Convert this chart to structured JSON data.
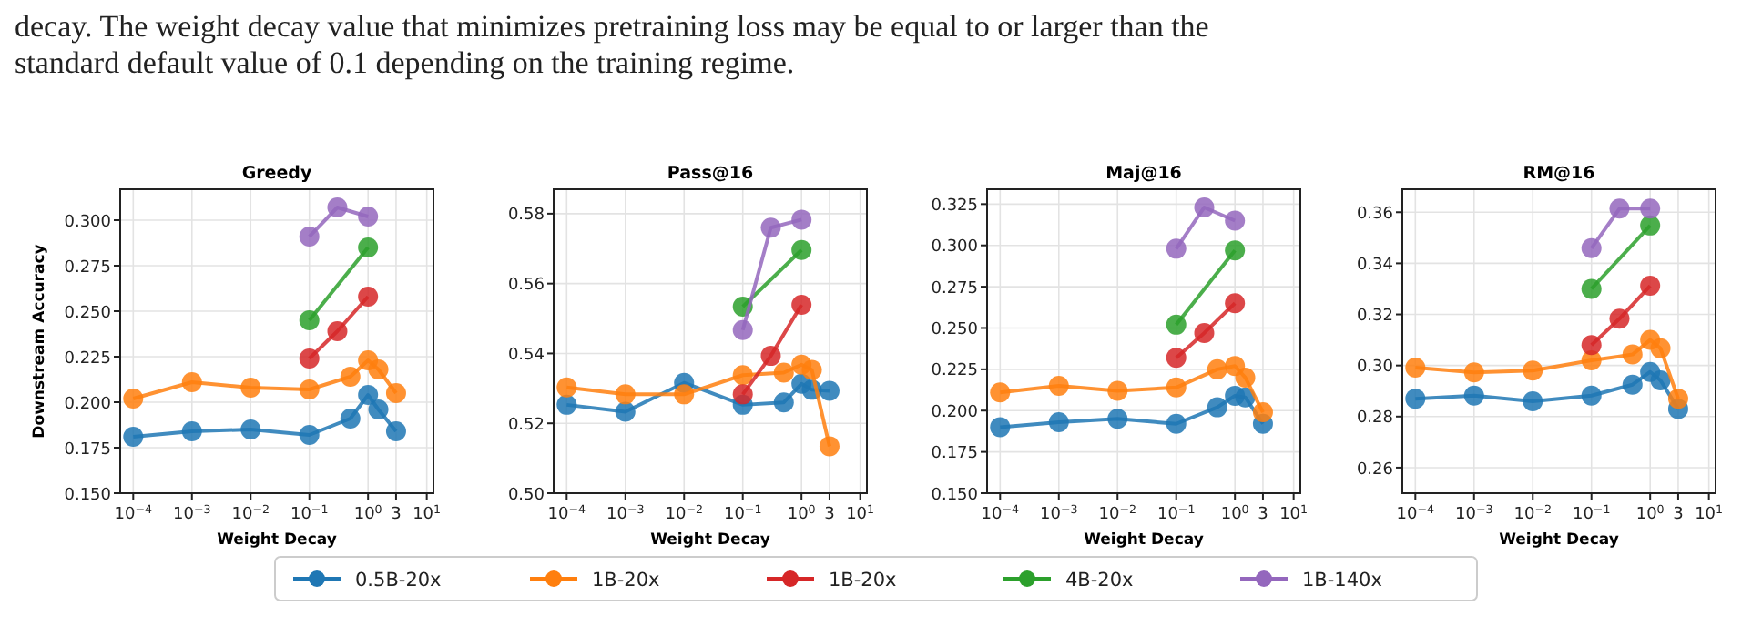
{
  "chart_data": [
    {
      "type": "line",
      "title": "Greedy",
      "xlabel": "Weight Decay",
      "ylabel": "Downstream Accuracy",
      "log": "x",
      "grid": true,
      "marker": "circle",
      "legend": "bottom",
      "annotations": [
        "decay. The weight decay value that minimizes pretraining loss may be equal to or larger than the",
        "standard default value of 0.1 depending on the training regime."
      ],
      "xlim": [
        6e-05,
        13
      ],
      "xticks": [
        {
          "value": 0.0001,
          "label": "10$^{−4}$"
        },
        {
          "value": 0.001,
          "label": "10$^{−3}$"
        },
        {
          "value": 0.01,
          "label": "10$^{−2}$"
        },
        {
          "value": 0.1,
          "label": "10$^{−1}$"
        },
        {
          "value": 1,
          "label": "10$^{0}$"
        },
        {
          "value": 3,
          "label": "3"
        },
        {
          "value": 10,
          "label": "10$^{1}$"
        }
      ],
      "ylim": [
        0.15,
        0.317
      ],
      "yticks": [
        {
          "value": 0.15,
          "label": "0.150"
        },
        {
          "value": 0.175,
          "label": "0.175"
        },
        {
          "value": 0.2,
          "label": "0.200"
        },
        {
          "value": 0.225,
          "label": "0.225"
        },
        {
          "value": 0.25,
          "label": "0.250"
        },
        {
          "value": 0.275,
          "label": "0.275"
        },
        {
          "value": 0.3,
          "label": "0.300"
        }
      ],
      "series": [
        {
          "name": "0.5B-20x",
          "color": "#1f77b4",
          "x": [
            0.0001,
            0.001,
            0.01,
            0.1,
            0.5,
            1,
            1.5,
            3
          ],
          "values": [
            0.181,
            0.184,
            0.185,
            0.182,
            0.191,
            0.204,
            0.196,
            0.184
          ]
        },
        {
          "name": "1B-20x",
          "color": "#ff7f0e",
          "x": [
            0.0001,
            0.001,
            0.01,
            0.1,
            0.5,
            1,
            1.5,
            3
          ],
          "values": [
            0.202,
            0.211,
            0.208,
            0.207,
            0.214,
            0.223,
            0.218,
            0.205
          ]
        },
        {
          "name": "1B-20x",
          "color": "#d62728",
          "x": [
            0.1,
            0.3,
            1
          ],
          "values": [
            0.224,
            0.239,
            0.258
          ]
        },
        {
          "name": "4B-20x",
          "color": "#2ca02c",
          "x": [
            0.1,
            1
          ],
          "values": [
            0.245,
            0.285
          ]
        },
        {
          "name": "1B-140x",
          "color": "#9467bd",
          "x": [
            0.1,
            0.3,
            1
          ],
          "values": [
            0.291,
            0.307,
            0.302
          ]
        }
      ]
    },
    {
      "type": "line",
      "title": "Pass@16",
      "xlabel": "Weight Decay",
      "log": "x",
      "grid": true,
      "marker": "circle",
      "xlim": [
        6e-05,
        13
      ],
      "xticks": [
        {
          "value": 0.0001,
          "label": "10$^{−4}$"
        },
        {
          "value": 0.001,
          "label": "10$^{−3}$"
        },
        {
          "value": 0.01,
          "label": "10$^{−2}$"
        },
        {
          "value": 0.1,
          "label": "10$^{−1}$"
        },
        {
          "value": 1,
          "label": "10$^{0}$"
        },
        {
          "value": 3,
          "label": "3"
        },
        {
          "value": 10,
          "label": "10$^{1}$"
        }
      ],
      "ylim": [
        0.5,
        0.587
      ],
      "yticks": [
        {
          "value": 0.5,
          "label": "0.50"
        },
        0.52,
        0.54,
        0.56,
        0.58
      ],
      "series": [
        {
          "color": "#1f77b4",
          "x": [
            0.0001,
            0.001,
            0.01,
            0.1,
            0.5,
            1,
            1.5,
            3
          ],
          "values": [
            0.5253,
            0.5233,
            0.5316,
            0.5253,
            0.526,
            0.5313,
            0.5296,
            0.5293
          ]
        },
        {
          "color": "#ff7f0e",
          "x": [
            0.0001,
            0.001,
            0.01,
            0.1,
            0.5,
            1,
            1.5,
            3
          ],
          "values": [
            0.5303,
            0.5283,
            0.5283,
            0.5338,
            0.5345,
            0.5368,
            0.5353,
            0.5134
          ]
        },
        {
          "color": "#d62728",
          "x": [
            0.1,
            0.3,
            1
          ],
          "values": [
            0.5283,
            0.5393,
            0.5539
          ]
        },
        {
          "color": "#2ca02c",
          "x": [
            0.1,
            1
          ],
          "values": [
            0.5534,
            0.5696
          ]
        },
        {
          "color": "#9467bd",
          "x": [
            0.1,
            0.3,
            1
          ],
          "values": [
            0.5467,
            0.576,
            0.5783
          ]
        }
      ]
    },
    {
      "type": "line",
      "title": "Maj@16",
      "xlabel": "Weight Decay",
      "log": "x",
      "grid": true,
      "marker": "circle",
      "xlim": [
        6e-05,
        13
      ],
      "xticks": [
        {
          "value": 0.0001,
          "label": "10$^{−4}$"
        },
        {
          "value": 0.001,
          "label": "10$^{−3}$"
        },
        {
          "value": 0.01,
          "label": "10$^{−2}$"
        },
        {
          "value": 0.1,
          "label": "10$^{−1}$"
        },
        {
          "value": 1,
          "label": "10$^{0}$"
        },
        {
          "value": 3,
          "label": "3"
        },
        {
          "value": 10,
          "label": "10$^{1}$"
        }
      ],
      "ylim": [
        0.15,
        0.334
      ],
      "yticks": [
        {
          "value": 0.15,
          "label": "0.150"
        },
        {
          "value": 0.175,
          "label": "0.175"
        },
        {
          "value": 0.2,
          "label": "0.200"
        },
        {
          "value": 0.225,
          "label": "0.225"
        },
        {
          "value": 0.25,
          "label": "0.250"
        },
        {
          "value": 0.275,
          "label": "0.275"
        },
        {
          "value": 0.3,
          "label": "0.300"
        },
        {
          "value": 0.325,
          "label": "0.325"
        }
      ],
      "series": [
        {
          "color": "#1f77b4",
          "x": [
            0.0001,
            0.001,
            0.01,
            0.1,
            0.5,
            1,
            1.5,
            3
          ],
          "values": [
            0.19,
            0.193,
            0.195,
            0.192,
            0.202,
            0.209,
            0.208,
            0.192
          ]
        },
        {
          "color": "#ff7f0e",
          "x": [
            0.0001,
            0.001,
            0.01,
            0.1,
            0.5,
            1,
            1.5,
            3
          ],
          "values": [
            0.211,
            0.215,
            0.212,
            0.214,
            0.225,
            0.227,
            0.22,
            0.199
          ]
        },
        {
          "color": "#d62728",
          "x": [
            0.1,
            0.3,
            1
          ],
          "values": [
            0.232,
            0.247,
            0.265
          ]
        },
        {
          "color": "#2ca02c",
          "x": [
            0.1,
            1
          ],
          "values": [
            0.252,
            0.297
          ]
        },
        {
          "color": "#9467bd",
          "x": [
            0.1,
            0.3,
            1
          ],
          "values": [
            0.298,
            0.323,
            0.315
          ]
        }
      ]
    },
    {
      "type": "line",
      "title": "RM@16",
      "xlabel": "Weight Decay",
      "log": "x",
      "grid": true,
      "marker": "circle",
      "xlim": [
        6e-05,
        13
      ],
      "xticks": [
        {
          "value": 0.0001,
          "label": "10$^{−4}$"
        },
        {
          "value": 0.001,
          "label": "10$^{−3}$"
        },
        {
          "value": 0.01,
          "label": "10$^{−2}$"
        },
        {
          "value": 0.1,
          "label": "10$^{−1}$"
        },
        {
          "value": 1,
          "label": "10$^{0}$"
        },
        {
          "value": 3,
          "label": "3"
        },
        {
          "value": 10,
          "label": "10$^{1}$"
        }
      ],
      "ylim": [
        0.25,
        0.369
      ],
      "yticks": [
        0.26,
        0.28,
        {
          "value": 0.3,
          "label": "0.30"
        },
        0.32,
        0.34,
        0.36
      ],
      "series": [
        {
          "color": "#1f77b4",
          "x": [
            0.0001,
            0.001,
            0.01,
            0.1,
            0.5,
            1,
            1.5,
            3
          ],
          "values": [
            0.287,
            0.2882,
            0.286,
            0.2882,
            0.2925,
            0.2975,
            0.2942,
            0.283
          ]
        },
        {
          "color": "#ff7f0e",
          "x": [
            0.0001,
            0.001,
            0.01,
            0.1,
            0.5,
            1,
            1.5,
            3
          ],
          "values": [
            0.2992,
            0.2973,
            0.298,
            0.302,
            0.3043,
            0.31,
            0.3067,
            0.287
          ]
        },
        {
          "color": "#d62728",
          "x": [
            0.1,
            0.3,
            1
          ],
          "values": [
            0.308,
            0.3183,
            0.3312
          ]
        },
        {
          "color": "#2ca02c",
          "x": [
            0.1,
            1
          ],
          "values": [
            0.33,
            0.3548
          ]
        },
        {
          "color": "#9467bd",
          "x": [
            0.1,
            0.3,
            1
          ],
          "values": [
            0.3459,
            0.3614,
            0.3614
          ]
        }
      ]
    }
  ]
}
